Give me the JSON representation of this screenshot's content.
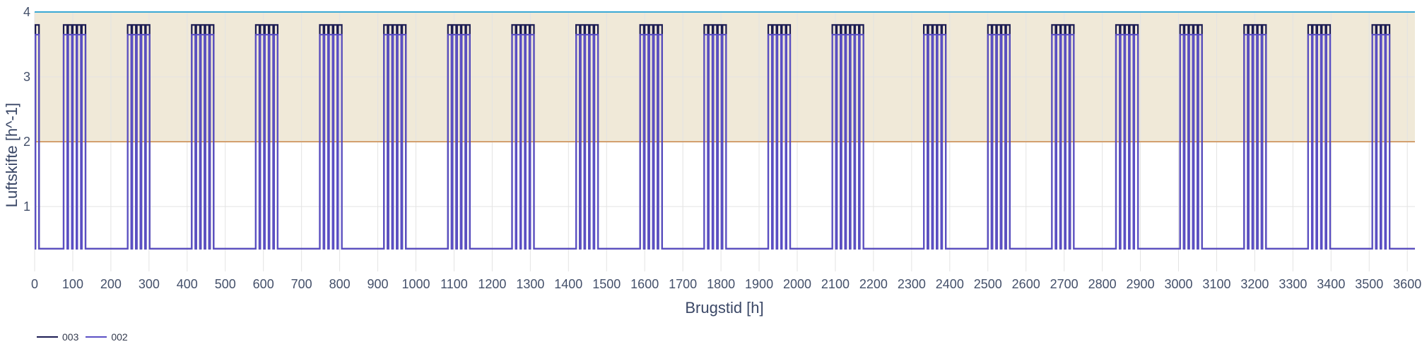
{
  "chart_data": {
    "type": "line",
    "title": "",
    "xlabel": "Brugstid [h]",
    "ylabel": "Luftskifte [h^-1]",
    "xlim": [
      0,
      3620
    ],
    "ylim": [
      0,
      4
    ],
    "x_ticks": [
      0,
      100,
      200,
      300,
      400,
      500,
      600,
      700,
      800,
      900,
      1000,
      1100,
      1200,
      1300,
      1400,
      1500,
      1600,
      1700,
      1800,
      1900,
      2000,
      2100,
      2200,
      2300,
      2400,
      2500,
      2600,
      2700,
      2800,
      2900,
      3000,
      3100,
      3200,
      3300,
      3400,
      3500,
      3600
    ],
    "y_ticks": [
      1,
      2,
      3,
      4
    ],
    "y_tick_labels": [
      "1",
      "2",
      "3",
      "4"
    ],
    "grid": true,
    "bands": [
      {
        "y_from": 2,
        "y_to": 4,
        "color": "#f0e9d8"
      }
    ],
    "reference_lines": [
      {
        "y": 4,
        "color": "#3aa9d4"
      },
      {
        "y": 2,
        "color": "#d3a06f"
      }
    ],
    "series": [
      {
        "name": "003",
        "color": "#1b1b52",
        "base_value": 0.35,
        "peak_value": 3.8,
        "pulse_width_h": 9.5,
        "pulse_period_h": 12,
        "blocks": [
          {
            "start": 2,
            "pulses": 1
          },
          {
            "start": 76,
            "pulses": 5
          },
          {
            "start": 244,
            "pulses": 5
          },
          {
            "start": 412,
            "pulses": 5
          },
          {
            "start": 580,
            "pulses": 5
          },
          {
            "start": 748,
            "pulses": 5
          },
          {
            "start": 916,
            "pulses": 5
          },
          {
            "start": 1084,
            "pulses": 5
          },
          {
            "start": 1252,
            "pulses": 5
          },
          {
            "start": 1420,
            "pulses": 5
          },
          {
            "start": 1588,
            "pulses": 5
          },
          {
            "start": 1756,
            "pulses": 5
          },
          {
            "start": 1924,
            "pulses": 5
          },
          {
            "start": 2092,
            "pulses": 7
          },
          {
            "start": 2332,
            "pulses": 5
          },
          {
            "start": 2500,
            "pulses": 5
          },
          {
            "start": 2668,
            "pulses": 5
          },
          {
            "start": 2836,
            "pulses": 5
          },
          {
            "start": 3004,
            "pulses": 5
          },
          {
            "start": 3172,
            "pulses": 5
          },
          {
            "start": 3340,
            "pulses": 5
          },
          {
            "start": 3508,
            "pulses": 4
          }
        ]
      },
      {
        "name": "002",
        "color": "#5b4fc4",
        "base_value": 0.35,
        "peak_value": 3.65,
        "pulse_width_h": 9.5,
        "pulse_period_h": 12,
        "blocks": [
          {
            "start": 2,
            "pulses": 1
          },
          {
            "start": 76,
            "pulses": 5
          },
          {
            "start": 244,
            "pulses": 5
          },
          {
            "start": 412,
            "pulses": 5
          },
          {
            "start": 580,
            "pulses": 5
          },
          {
            "start": 748,
            "pulses": 5
          },
          {
            "start": 916,
            "pulses": 5
          },
          {
            "start": 1084,
            "pulses": 5
          },
          {
            "start": 1252,
            "pulses": 5
          },
          {
            "start": 1420,
            "pulses": 5
          },
          {
            "start": 1588,
            "pulses": 5
          },
          {
            "start": 1756,
            "pulses": 5
          },
          {
            "start": 1924,
            "pulses": 5
          },
          {
            "start": 2092,
            "pulses": 7
          },
          {
            "start": 2332,
            "pulses": 5
          },
          {
            "start": 2500,
            "pulses": 5
          },
          {
            "start": 2668,
            "pulses": 5
          },
          {
            "start": 2836,
            "pulses": 5
          },
          {
            "start": 3004,
            "pulses": 5
          },
          {
            "start": 3172,
            "pulses": 5
          },
          {
            "start": 3340,
            "pulses": 5
          },
          {
            "start": 3508,
            "pulses": 4
          }
        ]
      }
    ],
    "legend_position": "bottom-left"
  }
}
